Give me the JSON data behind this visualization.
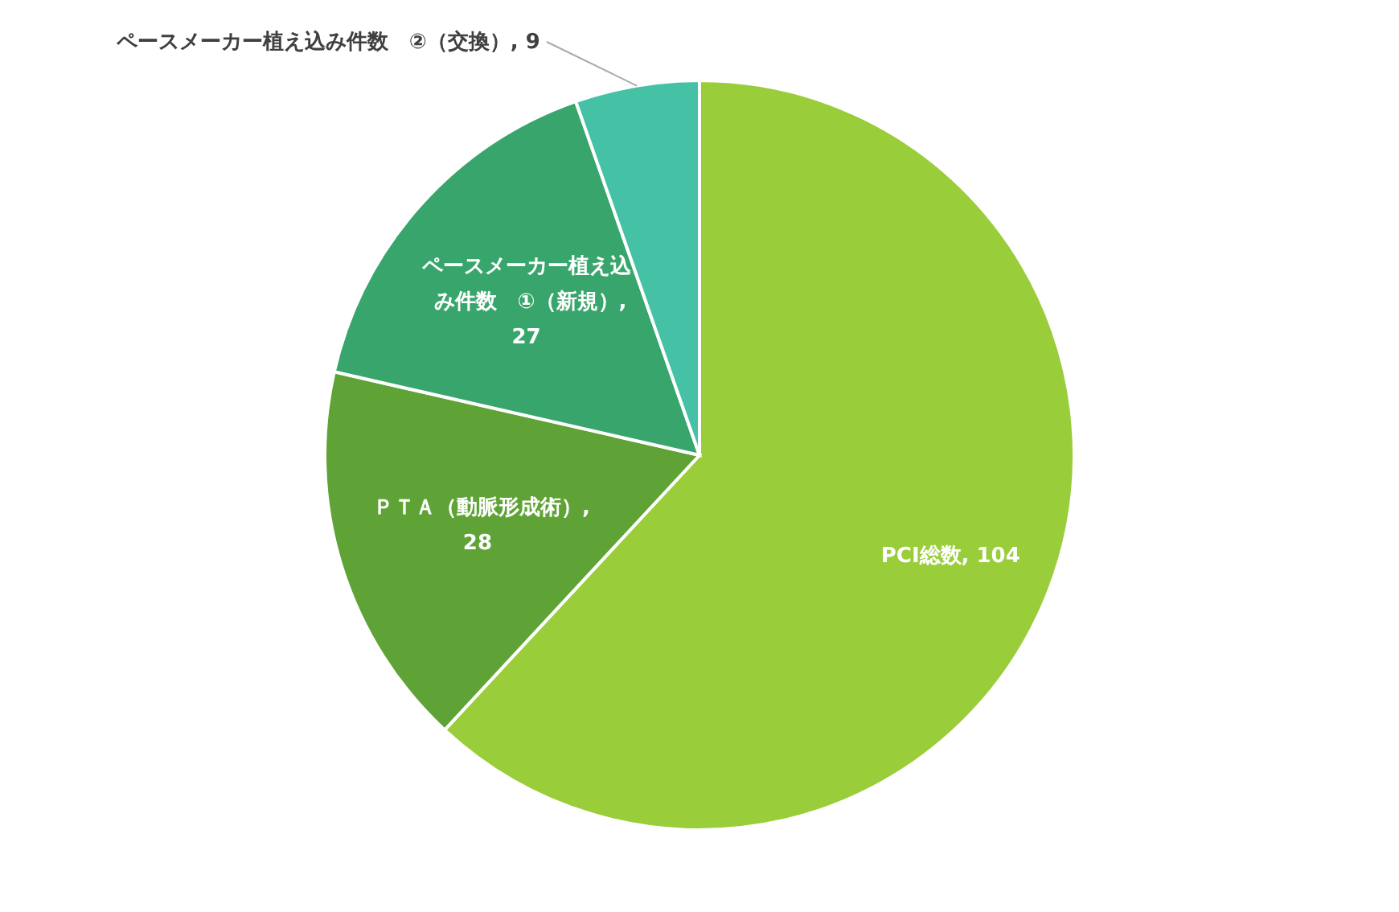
{
  "chart_data": {
    "type": "pie",
    "categories": [
      "PCI総数",
      "ＰＴＡ（動脈形成術）",
      "ペースメーカー植え込み件数　①（新規）",
      "ペースメーカー植え込み件数　②（交換）"
    ],
    "values": [
      104,
      28,
      27,
      9
    ],
    "colors": [
      "#9acd3a",
      "#5fa336",
      "#38a66c",
      "#45c2a6"
    ],
    "value_labels": [
      ", 104",
      ", 28",
      ", 27",
      ", 9"
    ]
  }
}
